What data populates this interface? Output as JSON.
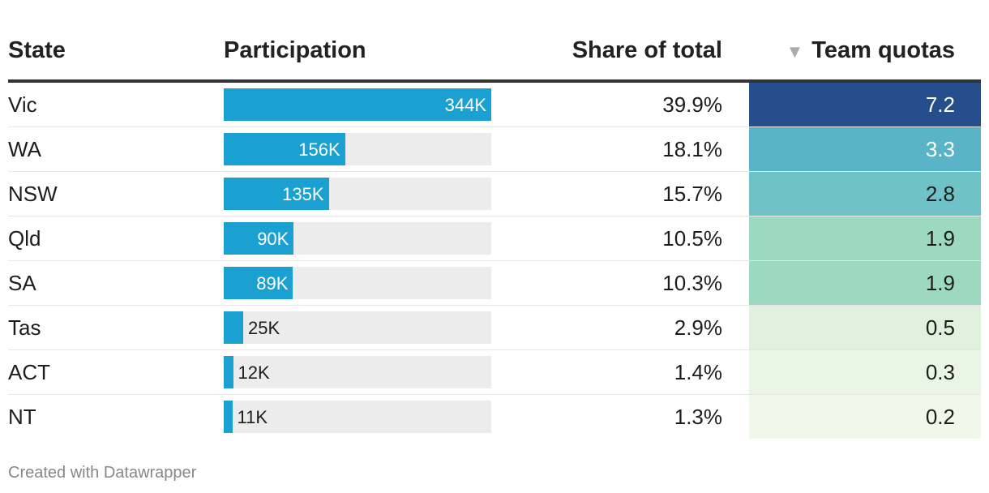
{
  "chart_data": {
    "type": "table",
    "columns": [
      "State",
      "Participation",
      "Share of total",
      "Team quotas"
    ],
    "sorted_column": "Team quotas",
    "sort_direction": "descending",
    "participation_max": 344000,
    "rows": [
      {
        "state": "Vic",
        "participation": 344000,
        "participation_label": "344K",
        "share": "39.9%",
        "quota": "7.2",
        "quota_color": "#264d8c",
        "quota_text_color": "#ffffff"
      },
      {
        "state": "WA",
        "participation": 156000,
        "participation_label": "156K",
        "share": "18.1%",
        "quota": "3.3",
        "quota_color": "#5ab4c8",
        "quota_text_color": "#ffffff"
      },
      {
        "state": "NSW",
        "participation": 135000,
        "participation_label": "135K",
        "share": "15.7%",
        "quota": "2.8",
        "quota_color": "#6fc2c6",
        "quota_text_color": "#1d1d1d"
      },
      {
        "state": "Qld",
        "participation": 90000,
        "participation_label": "90K",
        "share": "10.5%",
        "quota": "1.9",
        "quota_color": "#9dd9c0",
        "quota_text_color": "#1d1d1d"
      },
      {
        "state": "SA",
        "participation": 89000,
        "participation_label": "89K",
        "share": "10.3%",
        "quota": "1.9",
        "quota_color": "#9dd9c0",
        "quota_text_color": "#1d1d1d"
      },
      {
        "state": "Tas",
        "participation": 25000,
        "participation_label": "25K",
        "share": "2.9%",
        "quota": "0.5",
        "quota_color": "#e0f2dd",
        "quota_text_color": "#1d1d1d"
      },
      {
        "state": "ACT",
        "participation": 12000,
        "participation_label": "12K",
        "share": "1.4%",
        "quota": "0.3",
        "quota_color": "#eaf6e5",
        "quota_text_color": "#1d1d1d"
      },
      {
        "state": "NT",
        "participation": 11000,
        "participation_label": "11K",
        "share": "1.3%",
        "quota": "0.2",
        "quota_color": "#eff8ea",
        "quota_text_color": "#1d1d1d"
      }
    ]
  },
  "icons": {
    "sort": "sort-descending-icon"
  },
  "colors": {
    "bar": "#1aa1d1",
    "bar_background": "#ececec",
    "header_rule": "#333333"
  },
  "footer": "Created with Datawrapper"
}
